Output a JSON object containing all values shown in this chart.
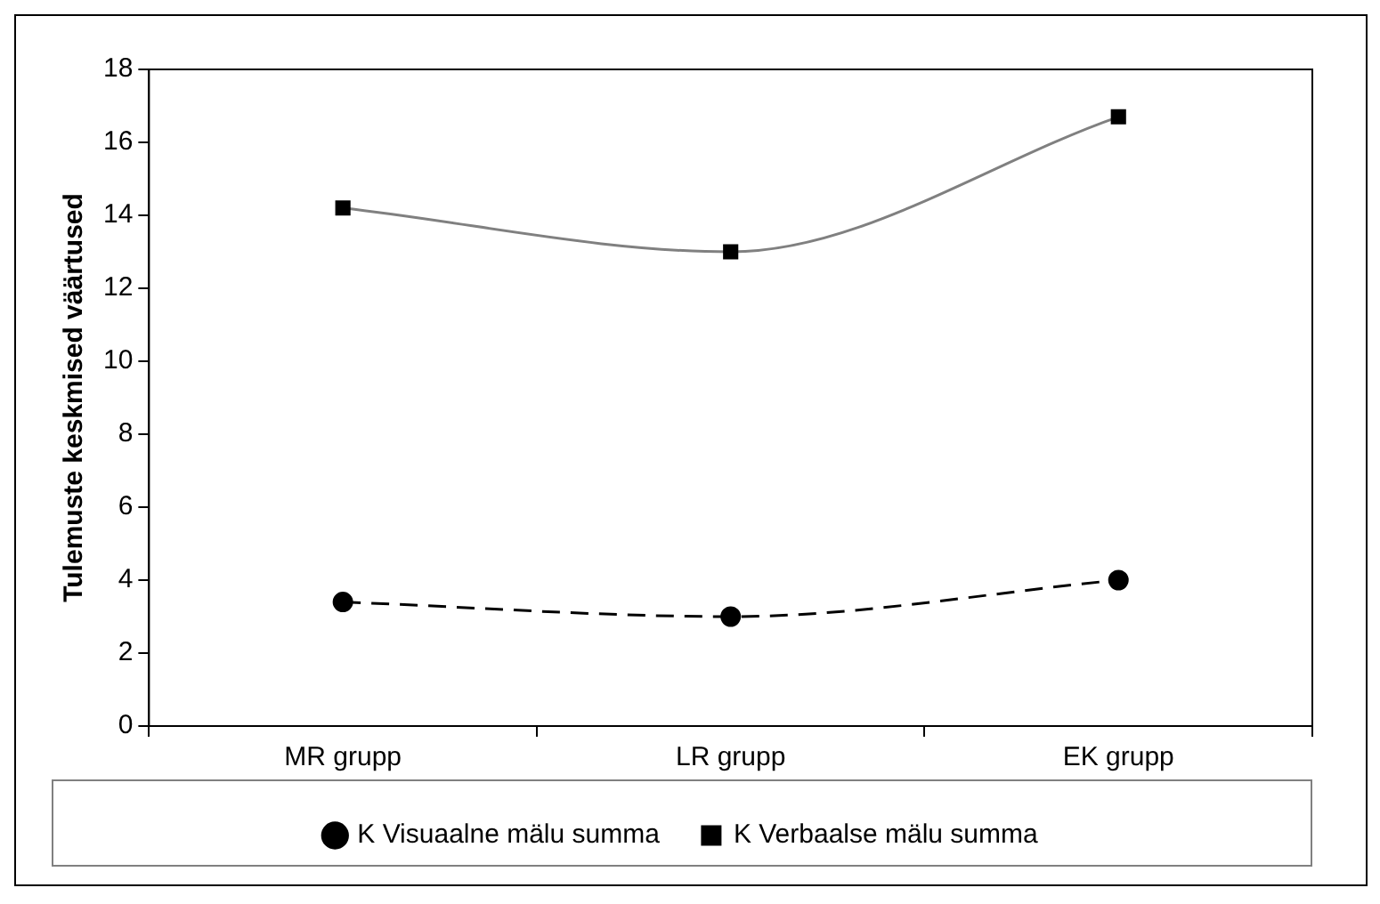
{
  "chart_data": {
    "type": "line",
    "ylabel": "Tulemuste keskmised väärtused",
    "categories": [
      "MR grupp",
      "LR grupp",
      "EK grupp"
    ],
    "series": [
      {
        "name": "K Visuaalne mälu summa",
        "color": "#000000",
        "values": [
          3.4,
          3.0,
          4.0
        ],
        "marker": "circle",
        "line_style": "dashed"
      },
      {
        "name": "K Verbaalse mälu summa",
        "color": "#808080",
        "values": [
          14.2,
          13.0,
          16.7
        ],
        "marker": "square",
        "line_style": "solid"
      }
    ],
    "ylim": [
      0,
      18
    ],
    "yticks": [
      0,
      2,
      4,
      6,
      8,
      10,
      12,
      14,
      16,
      18
    ],
    "grid": false,
    "legend": "bottom"
  }
}
